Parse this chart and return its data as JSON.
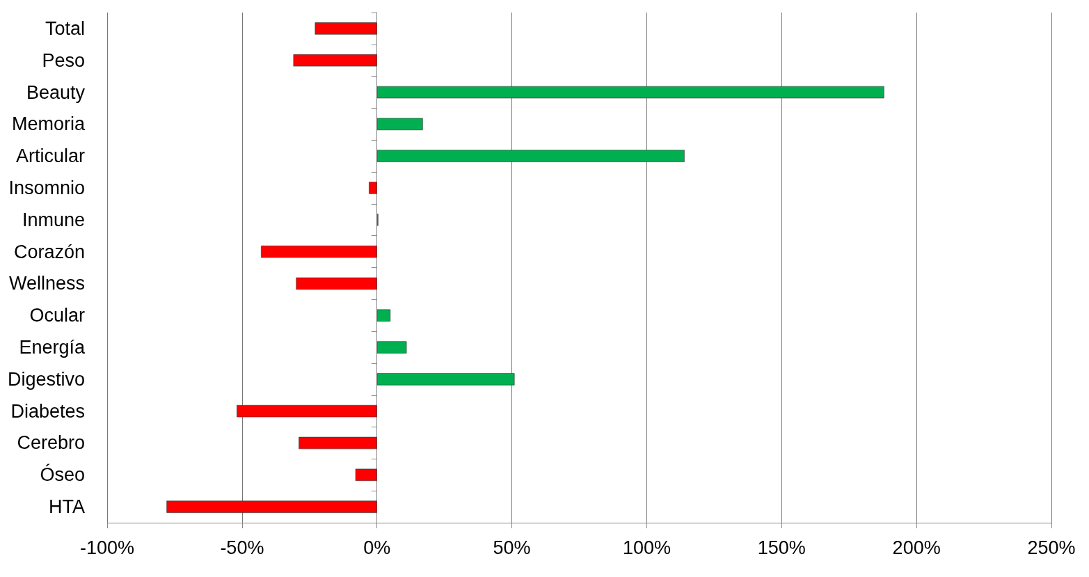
{
  "chart_data": {
    "type": "bar",
    "orientation": "horizontal",
    "categories": [
      "Total",
      "Peso",
      "Beauty",
      "Memoria",
      "Articular",
      "Insomnio",
      "Inmune",
      "Corazón",
      "Wellness",
      "Ocular",
      "Energía",
      "Digestivo",
      "Diabetes",
      "Cerebro",
      "Óseo",
      "HTA"
    ],
    "values": [
      -23,
      -31,
      188,
      17,
      114,
      -3,
      0.5,
      -43,
      -30,
      5,
      11,
      51,
      -52,
      -29,
      -8,
      -78
    ],
    "colors": [
      "#ff0000",
      "#ff0000",
      "#00b050",
      "#00b050",
      "#00b050",
      "#ff0000",
      "#00b050",
      "#ff0000",
      "#ff0000",
      "#00b050",
      "#00b050",
      "#00b050",
      "#ff0000",
      "#ff0000",
      "#ff0000",
      "#ff0000"
    ],
    "xlim": [
      -100,
      250
    ],
    "xticks": [
      {
        "value": -100,
        "label": "-100%"
      },
      {
        "value": -50,
        "label": "-50%"
      },
      {
        "value": 0,
        "label": "0%"
      },
      {
        "value": 50,
        "label": "50%"
      },
      {
        "value": 100,
        "label": "100%"
      },
      {
        "value": 150,
        "label": "150%"
      },
      {
        "value": 200,
        "label": "200%"
      },
      {
        "value": 250,
        "label": "250%"
      }
    ],
    "grid": "x"
  }
}
